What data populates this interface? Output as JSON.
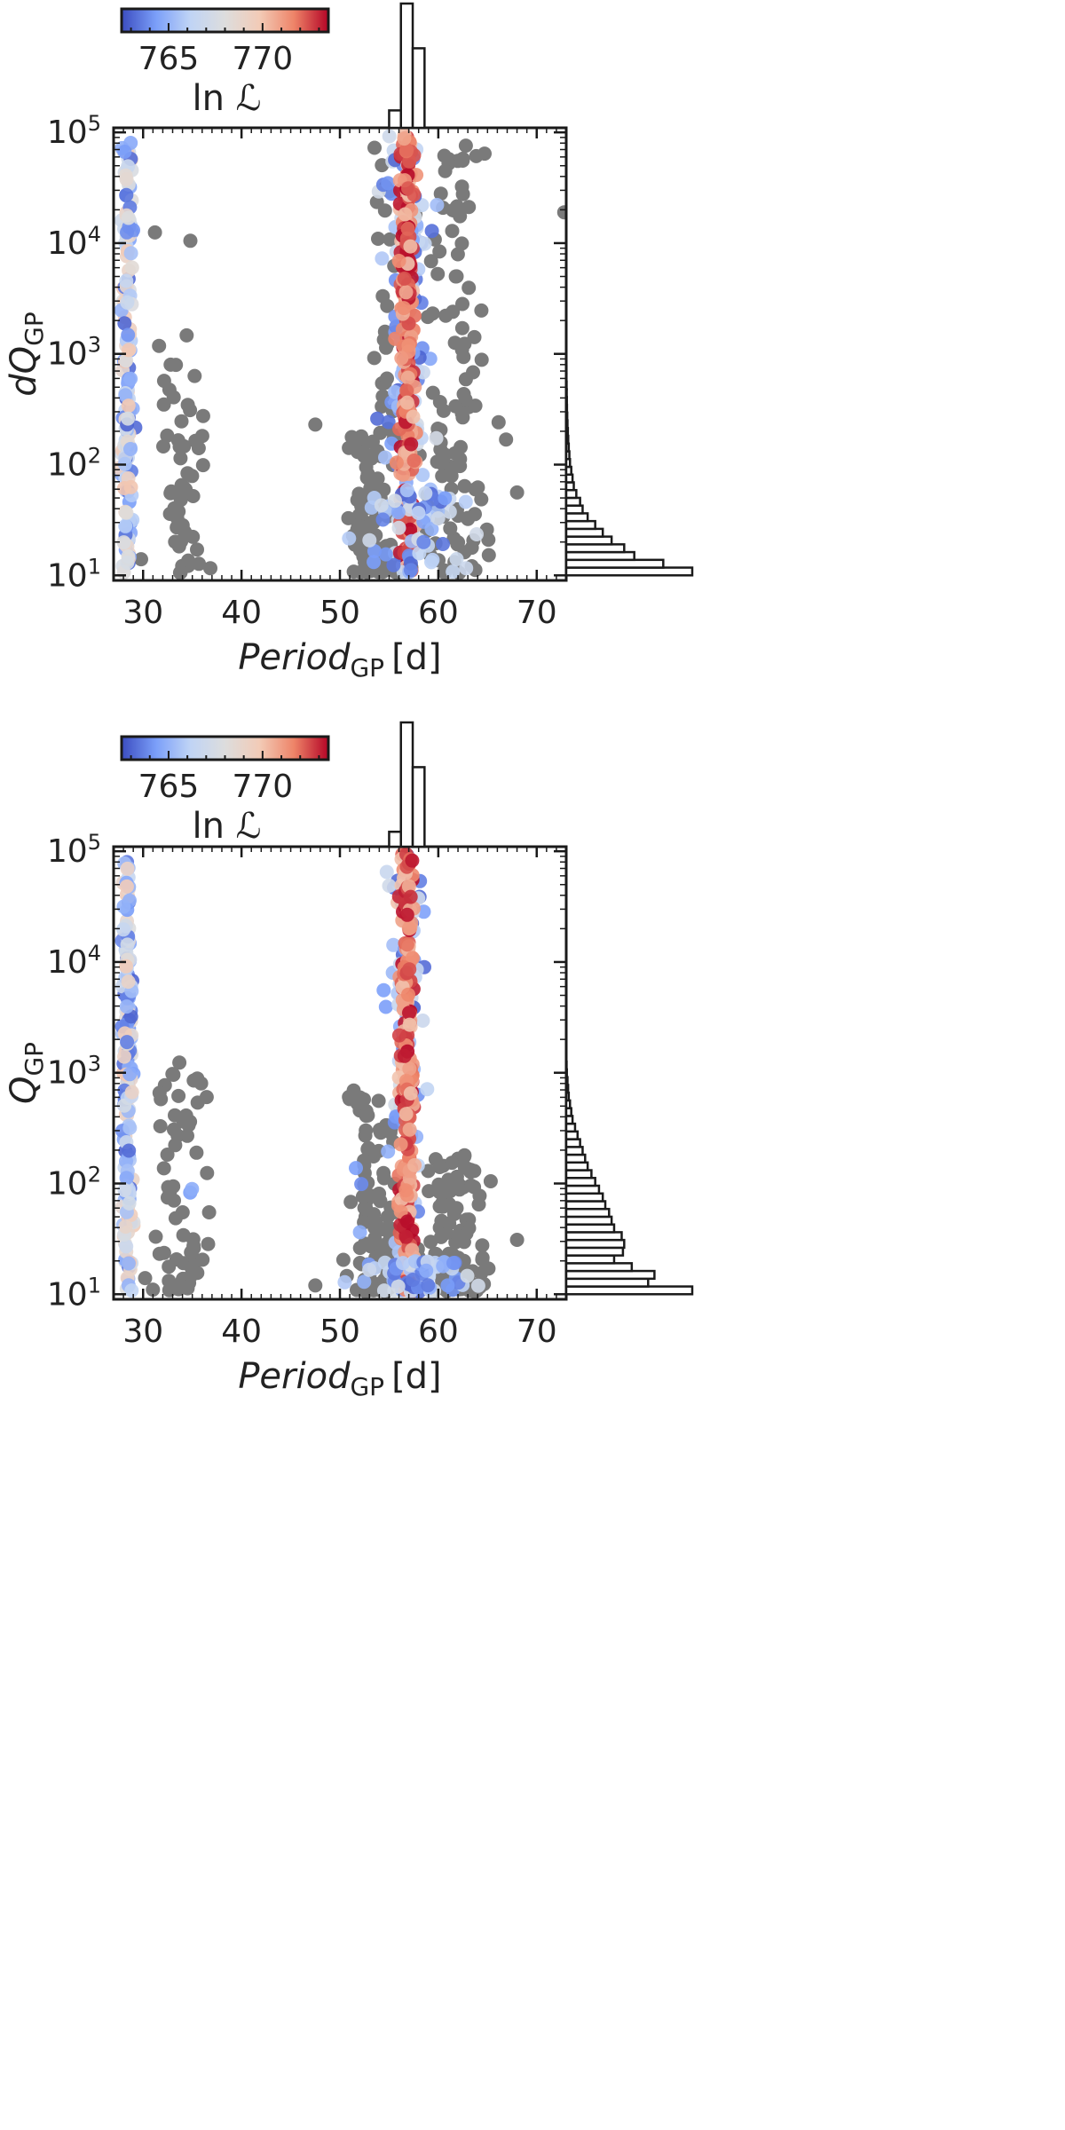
{
  "figure": {
    "background": "#ffffff",
    "colormap": "coolwarm",
    "colormap_stops": [
      "#3b4cc0",
      "#7b9ff9",
      "#c0d4f5",
      "#dddddd",
      "#f2cbb7",
      "#ee8468",
      "#b40426"
    ],
    "point_color_unscored": "#7a7a7a"
  },
  "chart_data": [
    {
      "type": "scatter",
      "panel": "top",
      "xlabel_main": "Period",
      "xlabel_sub": "GP",
      "xlabel_unit": "[d]",
      "ylabel_main": "dQ",
      "ylabel_sub": "GP",
      "xlim": [
        27,
        73
      ],
      "ylim": [
        9,
        110000
      ],
      "yscale": "log",
      "x_ticks": [
        30,
        40,
        50,
        60,
        70
      ],
      "y_ticks": [
        {
          "value": 10,
          "base": "10",
          "exp": "1"
        },
        {
          "value": 100,
          "base": "10",
          "exp": "2"
        },
        {
          "value": 1000,
          "base": "10",
          "exp": "3"
        },
        {
          "value": 10000,
          "base": "10",
          "exp": "4"
        },
        {
          "value": 100000,
          "base": "10",
          "exp": "5"
        }
      ],
      "colorbar": {
        "label": "ln ℒ",
        "range": [
          762.5,
          773.5
        ],
        "ticks": [
          765,
          770
        ]
      },
      "legend": "none",
      "grid": false,
      "series": [
        {
          "color_by": "ln_likelihood",
          "clusters": [
            {
              "x_center": 28.4,
              "x_sd": 0.25,
              "y_range": [
                10.5,
                95000
              ],
              "lnL_range": [
                763,
                770
              ],
              "n": 160
            },
            {
              "x_center": 56.8,
              "x_sd": 1.0,
              "y_range": [
                10.5,
                95000
              ],
              "lnL_range": [
                763,
                767.5
              ],
              "n": 110
            },
            {
              "x_center": 56.8,
              "x_sd": 0.35,
              "y_range": [
                10.5,
                95000
              ],
              "lnL_range": [
                770,
                773.5
              ],
              "n": 240
            },
            {
              "x_center": 58.0,
              "x_sd": 2.5,
              "y_range": [
                10.5,
                60
              ],
              "lnL_range": [
                763,
                767.5
              ],
              "n": 60
            }
          ]
        },
        {
          "color_by": "none",
          "clusters": [
            {
              "x_center": 34.2,
              "x_sd": 1.3,
              "y_range": [
                10.5,
                1500
              ],
              "n": 55
            },
            {
              "x_center": 52.8,
              "x_sd": 1.1,
              "y_range": [
                10.5,
                200
              ],
              "n": 70
            },
            {
              "x_center": 61.8,
              "x_sd": 1.7,
              "y_range": [
                10.5,
                100000
              ],
              "n": 110
            },
            {
              "x_center": 54.6,
              "x_sd": 0.7,
              "y_range": [
                10.5,
                100000
              ],
              "n": 50
            }
          ],
          "points": [
            [
              47.5,
              230
            ],
            [
              68,
              56
            ],
            [
              72.8,
              19000
            ],
            [
              31.2,
              12500
            ],
            [
              34.8,
              10500
            ],
            [
              29.8,
              14
            ]
          ]
        }
      ],
      "histogram_x": {
        "edges": [
          55,
          56.2,
          57.4,
          58.6
        ],
        "counts": [
          0.14,
          1.0,
          0.64
        ]
      },
      "histogram_y": {
        "log10_edges": [
          1.0,
          1.07,
          1.14,
          1.21,
          1.28,
          1.35,
          1.42,
          1.49,
          1.56,
          1.63,
          1.7,
          1.77,
          1.84,
          1.91,
          1.98,
          2.05,
          2.12,
          2.19,
          2.26,
          2.33,
          2.4,
          2.47,
          2.54,
          2.61,
          2.68,
          2.75,
          2.82,
          2.89,
          2.96,
          3.03,
          3.1
        ],
        "counts": [
          1.0,
          0.77,
          0.54,
          0.46,
          0.36,
          0.29,
          0.23,
          0.17,
          0.13,
          0.11,
          0.08,
          0.06,
          0.05,
          0.04,
          0.03,
          0.025,
          0.02,
          0.016,
          0.013,
          0.01,
          0.008,
          0.006,
          0.005,
          0.004,
          0.003,
          0.002,
          0.002,
          0.001,
          0.001,
          0.001
        ]
      }
    },
    {
      "type": "scatter",
      "panel": "bottom",
      "xlabel_main": "Period",
      "xlabel_sub": "GP",
      "xlabel_unit": "[d]",
      "ylabel_main": "Q",
      "ylabel_sub": "GP",
      "xlim": [
        27,
        73
      ],
      "ylim": [
        9,
        110000
      ],
      "yscale": "log",
      "x_ticks": [
        30,
        40,
        50,
        60,
        70
      ],
      "y_ticks": [
        {
          "value": 10,
          "base": "10",
          "exp": "1"
        },
        {
          "value": 100,
          "base": "10",
          "exp": "2"
        },
        {
          "value": 1000,
          "base": "10",
          "exp": "3"
        },
        {
          "value": 10000,
          "base": "10",
          "exp": "4"
        },
        {
          "value": 100000,
          "base": "10",
          "exp": "5"
        }
      ],
      "colorbar": {
        "label": "ln ℒ",
        "range": [
          762.5,
          773.5
        ],
        "ticks": [
          765,
          770
        ]
      },
      "legend": "none",
      "grid": false,
      "series": [
        {
          "color_by": "ln_likelihood",
          "clusters": [
            {
              "x_center": 28.4,
              "x_sd": 0.25,
              "y_range": [
                10.5,
                80000
              ],
              "lnL_range": [
                763,
                770
              ],
              "n": 170
            },
            {
              "x_center": 56.8,
              "x_sd": 1.0,
              "y_range": [
                10.5,
                95000
              ],
              "lnL_range": [
                763,
                767.5
              ],
              "n": 90
            },
            {
              "x_center": 56.8,
              "x_sd": 0.35,
              "y_range": [
                10.5,
                95000
              ],
              "lnL_range": [
                770,
                773.5
              ],
              "n": 240
            },
            {
              "x_center": 58.0,
              "x_sd": 2.5,
              "y_range": [
                10.5,
                20
              ],
              "lnL_range": [
                763,
                767.5
              ],
              "n": 60
            },
            {
              "x_center": 34.8,
              "x_sd": 0.2,
              "y_range": [
                70,
                100
              ],
              "lnL_range": [
                763,
                765
              ],
              "n": 2
            },
            {
              "x_center": 52.0,
              "x_sd": 0.2,
              "y_range": [
                35,
                150
              ],
              "lnL_range": [
                763,
                765
              ],
              "n": 3
            }
          ]
        },
        {
          "color_by": "none",
          "clusters": [
            {
              "x_center": 34.2,
              "x_sd": 1.3,
              "y_range": [
                10.5,
                1300
              ],
              "n": 60
            },
            {
              "x_center": 52.8,
              "x_sd": 1.1,
              "y_range": [
                10.5,
                700
              ],
              "n": 70
            },
            {
              "x_center": 61.8,
              "x_sd": 1.6,
              "y_range": [
                10.5,
                200
              ],
              "n": 100
            },
            {
              "x_center": 54.6,
              "x_sd": 0.6,
              "y_range": [
                10.5,
                500
              ],
              "n": 30
            }
          ],
          "points": [
            [
              47.5,
              12
            ],
            [
              68,
              31
            ],
            [
              30.2,
              14
            ],
            [
              31.0,
              11
            ]
          ]
        }
      ],
      "histogram_x": {
        "edges": [
          55,
          56.2,
          57.4,
          58.6
        ],
        "counts": [
          0.12,
          1.0,
          0.64
        ]
      },
      "histogram_y": {
        "log10_edges": [
          1.0,
          1.07,
          1.14,
          1.21,
          1.28,
          1.35,
          1.42,
          1.49,
          1.56,
          1.63,
          1.7,
          1.77,
          1.84,
          1.91,
          1.98,
          2.05,
          2.12,
          2.19,
          2.26,
          2.33,
          2.4,
          2.47,
          2.54,
          2.61,
          2.68,
          2.75,
          2.82,
          2.89,
          2.96,
          3.03,
          3.1
        ],
        "counts": [
          1.0,
          0.65,
          0.7,
          0.52,
          0.38,
          0.45,
          0.46,
          0.44,
          0.38,
          0.36,
          0.34,
          0.31,
          0.29,
          0.26,
          0.23,
          0.2,
          0.17,
          0.15,
          0.13,
          0.11,
          0.09,
          0.07,
          0.05,
          0.04,
          0.03,
          0.02,
          0.015,
          0.01,
          0.005,
          0.003
        ]
      }
    }
  ]
}
